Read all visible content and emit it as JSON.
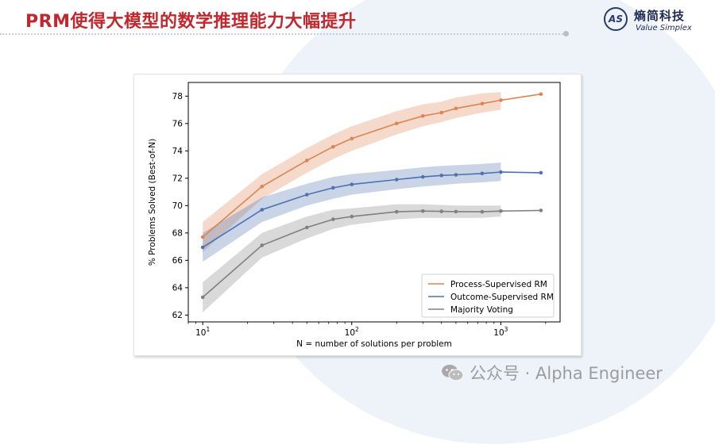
{
  "slide": {
    "title": "PRM使得大模型的数学推理能力大幅提升"
  },
  "logo": {
    "mark": "AS",
    "name_cn": "熵简科技",
    "name_en": "Value Simplex"
  },
  "watermark": {
    "text": "公众号 · Alpha Engineer"
  },
  "chart_data": {
    "type": "line",
    "title": "",
    "xlabel": "N = number of solutions per problem",
    "ylabel": "% Problems Solved (Best-of-N)",
    "xscale": "log",
    "xlim": [
      8,
      2500
    ],
    "ylim": [
      61.5,
      79
    ],
    "yticks": [
      62,
      64,
      66,
      68,
      70,
      72,
      74,
      76,
      78
    ],
    "xticks": [
      {
        "value": 10,
        "base": "10",
        "exp": "1"
      },
      {
        "value": 100,
        "base": "10",
        "exp": "2"
      },
      {
        "value": 1000,
        "base": "10",
        "exp": "3"
      }
    ],
    "x": [
      10,
      25,
      50,
      75,
      100,
      200,
      300,
      400,
      500,
      750,
      1000,
      1860
    ],
    "legend_position": "bottom-right",
    "series": [
      {
        "name": "Process-Supervised RM",
        "color": "#dd8452",
        "x": [
          10,
          25,
          50,
          75,
          100,
          200,
          300,
          400,
          500,
          750,
          1000,
          1860
        ],
        "values": [
          67.7,
          71.4,
          73.3,
          74.3,
          74.9,
          76.0,
          76.55,
          76.8,
          77.1,
          77.45,
          77.7,
          78.15
        ],
        "band_low": [
          66.6,
          70.5,
          72.4,
          73.4,
          74.0,
          75.2,
          75.8,
          76.1,
          76.4,
          76.8,
          77.0
        ],
        "band_high": [
          68.8,
          72.3,
          74.2,
          75.2,
          75.8,
          76.9,
          77.4,
          77.6,
          77.9,
          78.2,
          78.3
        ]
      },
      {
        "name": "Outcome-Supervised RM",
        "color": "#4c72b0",
        "x": [
          10,
          25,
          50,
          75,
          100,
          200,
          300,
          400,
          500,
          750,
          1000,
          1860
        ],
        "values": [
          66.95,
          69.7,
          70.8,
          71.3,
          71.55,
          71.9,
          72.1,
          72.2,
          72.25,
          72.35,
          72.45,
          72.4
        ],
        "band_low": [
          65.9,
          68.8,
          70.0,
          70.5,
          70.8,
          71.2,
          71.4,
          71.5,
          71.6,
          71.7,
          71.8
        ],
        "band_high": [
          68.0,
          70.6,
          71.6,
          72.1,
          72.3,
          72.6,
          72.8,
          72.9,
          72.95,
          73.05,
          73.15
        ]
      },
      {
        "name": "Majority Voting",
        "color": "#808080",
        "x": [
          10,
          25,
          50,
          75,
          100,
          200,
          300,
          400,
          500,
          750,
          1000,
          1860
        ],
        "values": [
          63.3,
          67.1,
          68.4,
          69.0,
          69.2,
          69.55,
          69.6,
          69.58,
          69.56,
          69.55,
          69.6,
          69.65
        ],
        "band_low": [
          62.2,
          66.2,
          67.6,
          68.3,
          68.6,
          69.0,
          69.1,
          69.1,
          69.1,
          69.1,
          69.2
        ],
        "band_high": [
          64.4,
          68.0,
          69.2,
          69.7,
          69.8,
          70.1,
          70.1,
          70.05,
          70.0,
          70.0,
          70.0
        ]
      }
    ]
  }
}
